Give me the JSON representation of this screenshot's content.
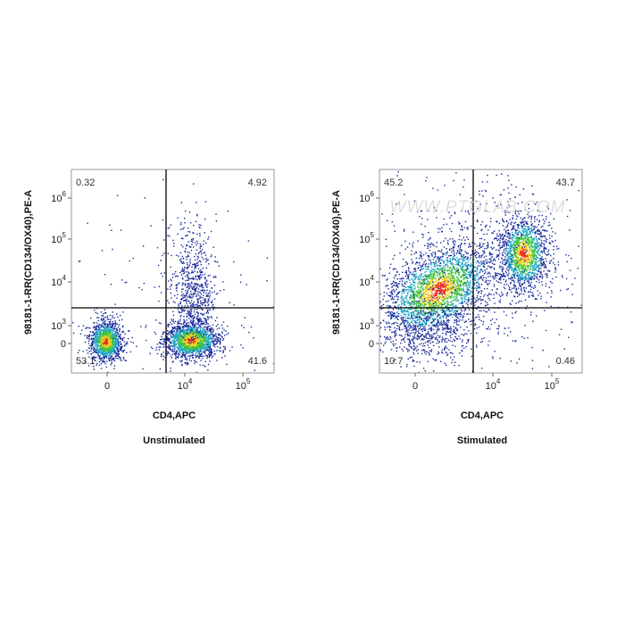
{
  "panels": [
    {
      "y_axis_label": "98181-1-RR(CD134/OX40),PE-A",
      "x_axis_label": "CD4,APC",
      "title": "Unstimulated",
      "quadrants": {
        "upper_left": 0.32,
        "upper_right": 4.92,
        "lower_left": 53.1,
        "lower_right": 41.6
      },
      "y_ticks": [
        {
          "base": "10",
          "exponent": "6"
        },
        {
          "base": "10",
          "exponent": "5"
        },
        {
          "base": "10",
          "exponent": "4"
        },
        {
          "base": "10",
          "exponent": "3"
        },
        {
          "base": "0"
        }
      ],
      "x_ticks": [
        {
          "base": "0"
        },
        {
          "base": "10",
          "exponent": "4"
        },
        {
          "base": "10",
          "exponent": "5"
        }
      ]
    },
    {
      "y_axis_label": "98181-1-RR(CD134/OX40),PE-A",
      "x_axis_label": "CD4,APC",
      "title": "Stimulated",
      "quadrants": {
        "upper_left": 45.2,
        "upper_right": 43.7,
        "lower_left": 10.7,
        "lower_right": 0.46
      },
      "y_ticks": [
        {
          "base": "10",
          "exponent": "6"
        },
        {
          "base": "10",
          "exponent": "5"
        },
        {
          "base": "10",
          "exponent": "4"
        },
        {
          "base": "10",
          "exponent": "3"
        },
        {
          "base": "0"
        }
      ],
      "x_ticks": [
        {
          "base": "0"
        },
        {
          "base": "10",
          "exponent": "4"
        },
        {
          "base": "10",
          "exponent": "5"
        }
      ]
    }
  ],
  "watermark": "WWW.PTGLAB.COM"
}
